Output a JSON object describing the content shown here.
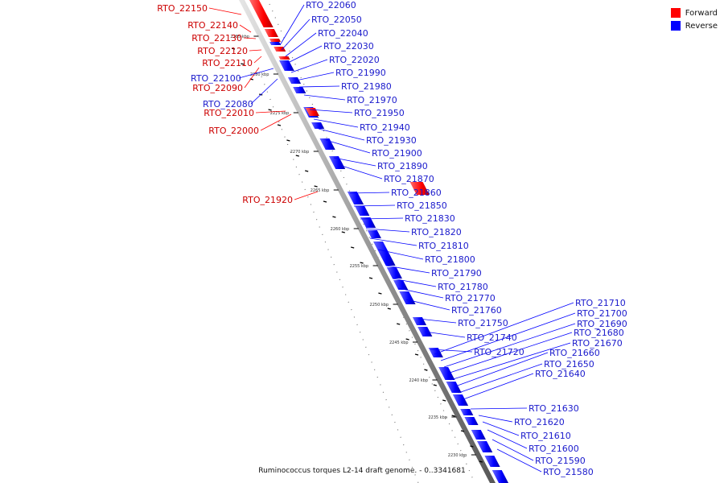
{
  "legend": {
    "forward": {
      "label": "Forward",
      "color": "#ff0000"
    },
    "reverse": {
      "label": "Reverse",
      "color": "#0000ff"
    }
  },
  "caption": "Ruminococcus torques L2-14 draft genome. - 0..3341681",
  "ticks": [
    "2285 kbp",
    "2280 kbp",
    "2275 kbp",
    "2270 kbp",
    "2265 kbp",
    "2260 kbp",
    "2255 kbp",
    "2250 kbp",
    "2245 kbp",
    "2240 kbp",
    "2235 kbp",
    "2230 kbp"
  ],
  "forward_genes": [
    "RTO_22150",
    "RTO_22140",
    "RTO_22130",
    "RTO_22120",
    "RTO_22110",
    "RTO_22090",
    "RTO_22010",
    "RTO_22000",
    "RTO_21920"
  ],
  "reverse_genes": [
    "RTO_22060",
    "RTO_22050",
    "RTO_22040",
    "RTO_22030",
    "RTO_22020",
    "RTO_22100",
    "RTO_21990",
    "RTO_22080",
    "RTO_21980",
    "RTO_21970",
    "RTO_21950",
    "RTO_21940",
    "RTO_21930",
    "RTO_21900",
    "RTO_21890",
    "RTO_21870",
    "RTO_21860",
    "RTO_21850",
    "RTO_21830",
    "RTO_21820",
    "RTO_21810",
    "RTO_21800",
    "RTO_21790",
    "RTO_21780",
    "RTO_21770",
    "RTO_21760",
    "RTO_21750",
    "RTO_21740",
    "RTO_21720",
    "RTO_21710",
    "RTO_21700",
    "RTO_21690",
    "RTO_21680",
    "RTO_21670",
    "RTO_21660",
    "RTO_21650",
    "RTO_21640",
    "RTO_21630",
    "RTO_21620",
    "RTO_21610",
    "RTO_21600",
    "RTO_21590",
    "RTO_21580"
  ]
}
